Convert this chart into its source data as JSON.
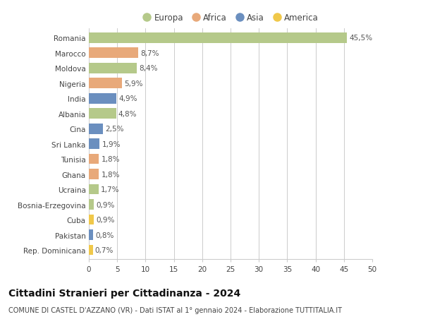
{
  "countries": [
    "Romania",
    "Marocco",
    "Moldova",
    "Nigeria",
    "India",
    "Albania",
    "Cina",
    "Sri Lanka",
    "Tunisia",
    "Ghana",
    "Ucraina",
    "Bosnia-Erzegovina",
    "Cuba",
    "Pakistan",
    "Rep. Dominicana"
  ],
  "values": [
    45.5,
    8.7,
    8.4,
    5.9,
    4.9,
    4.8,
    2.5,
    1.9,
    1.8,
    1.8,
    1.7,
    0.9,
    0.9,
    0.8,
    0.7
  ],
  "labels": [
    "45,5%",
    "8,7%",
    "8,4%",
    "5,9%",
    "4,9%",
    "4,8%",
    "2,5%",
    "1,9%",
    "1,8%",
    "1,8%",
    "1,7%",
    "0,9%",
    "0,9%",
    "0,8%",
    "0,7%"
  ],
  "continents": [
    "Europa",
    "Africa",
    "Europa",
    "Africa",
    "Asia",
    "Europa",
    "Asia",
    "Asia",
    "Africa",
    "Africa",
    "Europa",
    "Europa",
    "America",
    "Asia",
    "America"
  ],
  "colors": {
    "Europa": "#b5c98a",
    "Africa": "#e8a97a",
    "Asia": "#6b8fbf",
    "America": "#f0c84a"
  },
  "title": "Cittadini Stranieri per Cittadinanza - 2024",
  "subtitle": "COMUNE DI CASTEL D'AZZANO (VR) - Dati ISTAT al 1° gennaio 2024 - Elaborazione TUTTITALIA.IT",
  "xlim": [
    0,
    50
  ],
  "xticks": [
    0,
    5,
    10,
    15,
    20,
    25,
    30,
    35,
    40,
    45,
    50
  ],
  "background_color": "#ffffff",
  "grid_color": "#cccccc",
  "bar_height": 0.68,
  "label_fontsize": 7.5,
  "tick_fontsize": 7.5,
  "title_fontsize": 10,
  "subtitle_fontsize": 7
}
